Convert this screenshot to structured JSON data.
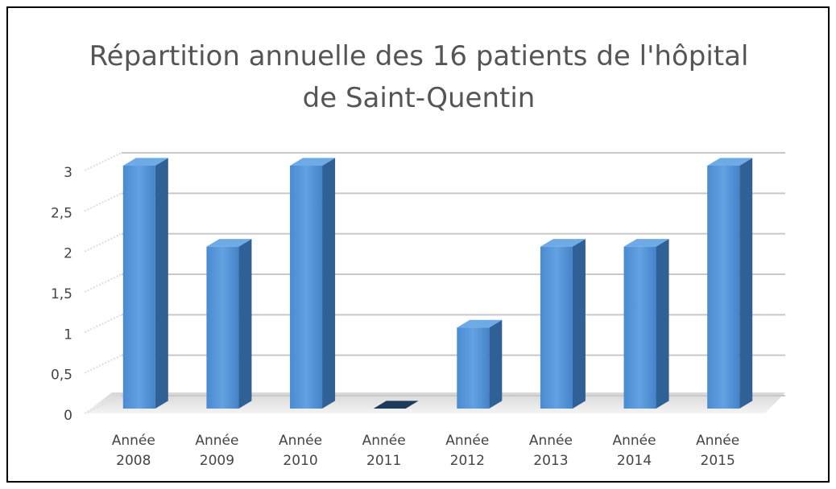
{
  "chart_data": {
    "type": "bar3d",
    "title": "Répartition annuelle des 16 patients de l'hôpital de Saint-Quentin",
    "categories": [
      "Année 2008",
      "Année 2009",
      "Année 2010",
      "Année 2011",
      "Année 2012",
      "Année 2013",
      "Année 2014",
      "Année 2015"
    ],
    "values": [
      3,
      2,
      3,
      0,
      1,
      2,
      2,
      3
    ],
    "color": "#5b9bd5",
    "ylim": [
      0,
      3
    ],
    "yticks": [
      0,
      {
        "value": 0.5,
        "label": "0,5"
      },
      1,
      {
        "value": 1.5,
        "label": "1,5"
      },
      2,
      {
        "value": 2.5,
        "label": "2,5"
      },
      3
    ],
    "grid": true
  }
}
